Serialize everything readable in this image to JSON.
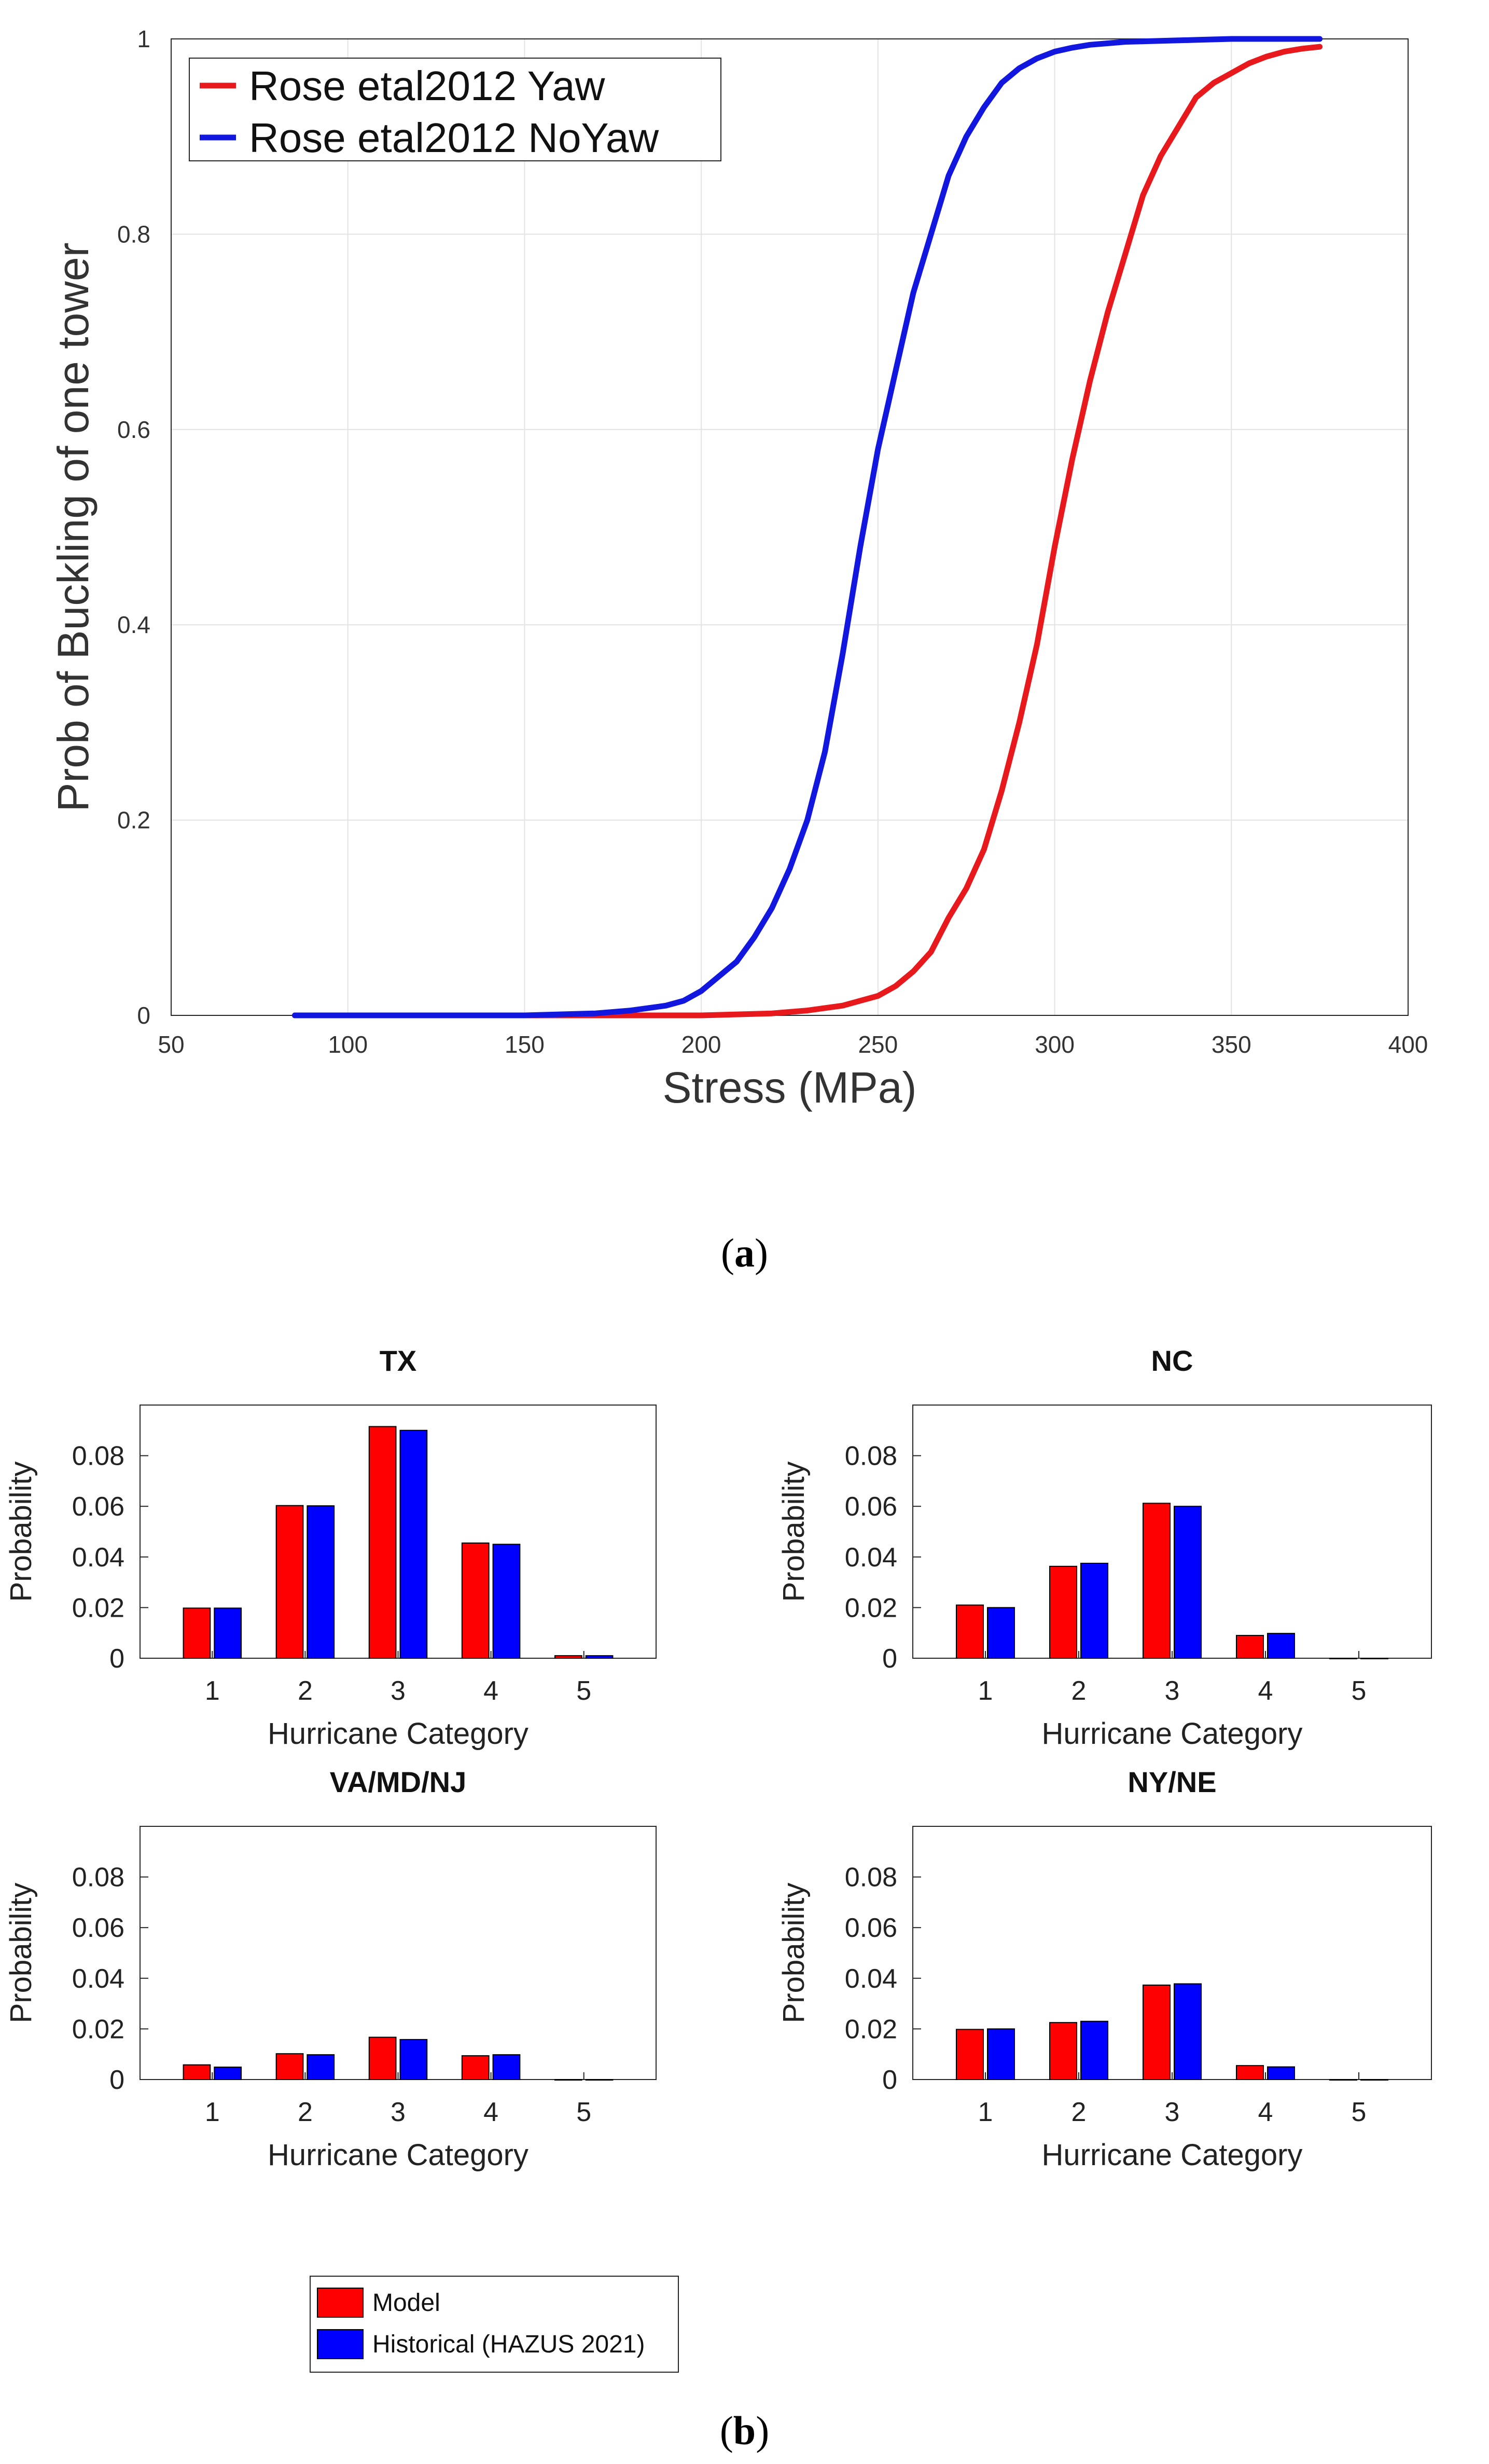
{
  "figure": {
    "caption_a_open": "(",
    "caption_a_letter": "a",
    "caption_a_close": ")",
    "caption_b_open": "(",
    "caption_b_letter": "b",
    "caption_b_close": ")"
  },
  "chart_data": [
    {
      "id": "panel-a",
      "type": "line",
      "title": "",
      "xlabel": "Stress (MPa)",
      "ylabel": "Prob of Buckling of one tower",
      "xlim": [
        50,
        400
      ],
      "ylim": [
        0,
        1
      ],
      "xticks": [
        50,
        100,
        150,
        200,
        250,
        300,
        350,
        400
      ],
      "yticks": [
        0,
        0.2,
        0.4,
        0.6,
        0.8,
        1
      ],
      "ytick_labels": [
        "0",
        "0.2",
        "0.4",
        "0.6",
        "0.8",
        "1"
      ],
      "grid": true,
      "legend_position": "top-left",
      "series": [
        {
          "name": "Rose etal2012 Yaw",
          "color": "#e8191c",
          "x": [
            85,
            200,
            220,
            230,
            240,
            250,
            255,
            260,
            265,
            270,
            275,
            280,
            285,
            290,
            295,
            300,
            305,
            310,
            315,
            320,
            325,
            330,
            335,
            340,
            345,
            350,
            355,
            360,
            365,
            370,
            375
          ],
          "y": [
            0,
            0,
            0.002,
            0.005,
            0.01,
            0.02,
            0.03,
            0.045,
            0.065,
            0.1,
            0.13,
            0.17,
            0.23,
            0.3,
            0.38,
            0.48,
            0.57,
            0.65,
            0.72,
            0.78,
            0.84,
            0.88,
            0.91,
            0.94,
            0.955,
            0.965,
            0.975,
            0.982,
            0.987,
            0.99,
            0.992
          ]
        },
        {
          "name": "Rose etal2012 NoYaw",
          "color": "#1217e0",
          "x": [
            85,
            150,
            170,
            180,
            190,
            195,
            200,
            205,
            210,
            215,
            220,
            225,
            230,
            235,
            240,
            245,
            250,
            255,
            260,
            265,
            270,
            275,
            280,
            285,
            290,
            295,
            300,
            305,
            310,
            320,
            330,
            340,
            350,
            375
          ],
          "y": [
            0,
            0,
            0.002,
            0.005,
            0.01,
            0.015,
            0.025,
            0.04,
            0.055,
            0.08,
            0.11,
            0.15,
            0.2,
            0.27,
            0.37,
            0.48,
            0.58,
            0.66,
            0.74,
            0.8,
            0.86,
            0.9,
            0.93,
            0.955,
            0.97,
            0.98,
            0.987,
            0.991,
            0.994,
            0.997,
            0.998,
            0.999,
            1.0,
            1.0
          ]
        }
      ]
    },
    {
      "id": "panel-b-tx",
      "type": "bar",
      "title": "TX",
      "xlabel": "Hurricane Category",
      "ylabel": "Probability",
      "categories": [
        "1",
        "2",
        "3",
        "4",
        "5"
      ],
      "ylim": [
        0,
        0.1
      ],
      "yticks": [
        0,
        0.02,
        0.04,
        0.06,
        0.08
      ],
      "ytick_labels": [
        "0",
        "0.02",
        "0.04",
        "0.06",
        "0.08"
      ],
      "series": [
        {
          "name": "Model",
          "color": "#ff0000",
          "values": [
            0.0198,
            0.0603,
            0.0915,
            0.0455,
            0.001
          ]
        },
        {
          "name": "Historical (HAZUS 2021)",
          "color": "#0000ff",
          "values": [
            0.0198,
            0.0602,
            0.09,
            0.045,
            0.001
          ]
        }
      ]
    },
    {
      "id": "panel-b-nc",
      "type": "bar",
      "title": "NC",
      "xlabel": "Hurricane Category",
      "ylabel": "Probability",
      "categories": [
        "1",
        "2",
        "3",
        "4",
        "5"
      ],
      "ylim": [
        0,
        0.1
      ],
      "yticks": [
        0,
        0.02,
        0.04,
        0.06,
        0.08
      ],
      "ytick_labels": [
        "0",
        "0.02",
        "0.04",
        "0.06",
        "0.08"
      ],
      "series": [
        {
          "name": "Model",
          "color": "#ff0000",
          "values": [
            0.021,
            0.0363,
            0.0612,
            0.009,
            0
          ]
        },
        {
          "name": "Historical (HAZUS 2021)",
          "color": "#0000ff",
          "values": [
            0.02,
            0.0375,
            0.06,
            0.0098,
            0
          ]
        }
      ]
    },
    {
      "id": "panel-b-vamdnj",
      "type": "bar",
      "title": "VA/MD/NJ",
      "xlabel": "Hurricane Category",
      "ylabel": "Probability",
      "categories": [
        "1",
        "2",
        "3",
        "4",
        "5"
      ],
      "ylim": [
        0,
        0.1
      ],
      "yticks": [
        0,
        0.02,
        0.04,
        0.06,
        0.08
      ],
      "ytick_labels": [
        "0",
        "0.02",
        "0.04",
        "0.06",
        "0.08"
      ],
      "series": [
        {
          "name": "Model",
          "color": "#ff0000",
          "values": [
            0.0058,
            0.0102,
            0.0167,
            0.0094,
            0
          ]
        },
        {
          "name": "Historical (HAZUS 2021)",
          "color": "#0000ff",
          "values": [
            0.0049,
            0.0098,
            0.0158,
            0.0098,
            0
          ]
        }
      ]
    },
    {
      "id": "panel-b-nyne",
      "type": "bar",
      "title": "NY/NE",
      "xlabel": "Hurricane Category",
      "ylabel": "Probability",
      "categories": [
        "1",
        "2",
        "3",
        "4",
        "5"
      ],
      "ylim": [
        0,
        0.1
      ],
      "yticks": [
        0,
        0.02,
        0.04,
        0.06,
        0.08
      ],
      "ytick_labels": [
        "0",
        "0.02",
        "0.04",
        "0.06",
        "0.08"
      ],
      "series": [
        {
          "name": "Model",
          "color": "#ff0000",
          "values": [
            0.0198,
            0.0225,
            0.0373,
            0.0055,
            0
          ]
        },
        {
          "name": "Historical (HAZUS 2021)",
          "color": "#0000ff",
          "values": [
            0.02,
            0.023,
            0.0378,
            0.005,
            0
          ]
        }
      ]
    }
  ],
  "bar_legend": {
    "position": "bottom-center",
    "entries": [
      {
        "label": "Model",
        "color": "#ff0000"
      },
      {
        "label": "Historical (HAZUS 2021)",
        "color": "#0000ff"
      }
    ]
  }
}
